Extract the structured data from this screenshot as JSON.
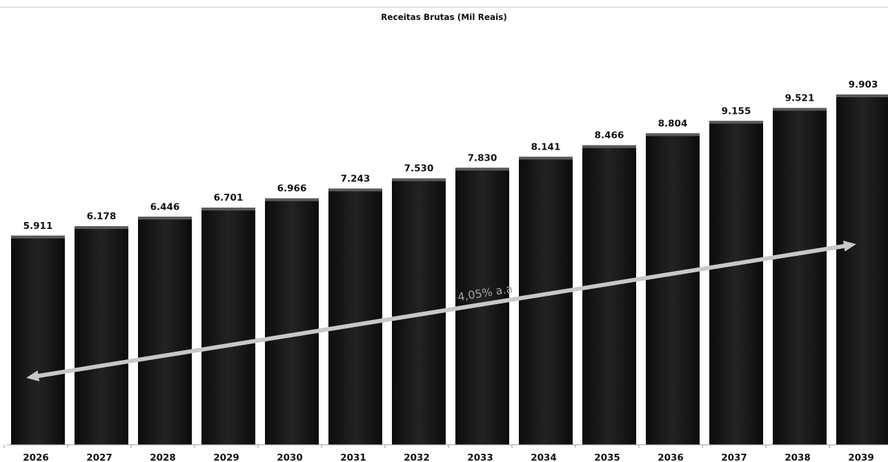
{
  "chart_data": {
    "type": "bar",
    "title": "Receitas Brutas (Mil Reais)",
    "categories": [
      "2026",
      "2027",
      "2028",
      "2029",
      "2030",
      "2031",
      "2032",
      "2033",
      "2034",
      "2035",
      "2036",
      "2037",
      "2038",
      "2039"
    ],
    "values": [
      5911,
      6178,
      6446,
      6701,
      6966,
      7243,
      7530,
      7830,
      8141,
      8466,
      8804,
      9155,
      9521,
      9903
    ],
    "value_labels": [
      "5.911",
      "6.178",
      "6.446",
      "6.701",
      "6.966",
      "7.243",
      "7.530",
      "7.830",
      "8.141",
      "8.466",
      "8.804",
      "9.155",
      "9.521",
      "9.903"
    ],
    "ylim": [
      0,
      11000
    ],
    "grid": false,
    "legend": "none",
    "bar_color": "#1c1c1c",
    "annotation": {
      "text": "4,05% a.a",
      "type": "double-arrow",
      "color": "#c8c8c8"
    }
  }
}
